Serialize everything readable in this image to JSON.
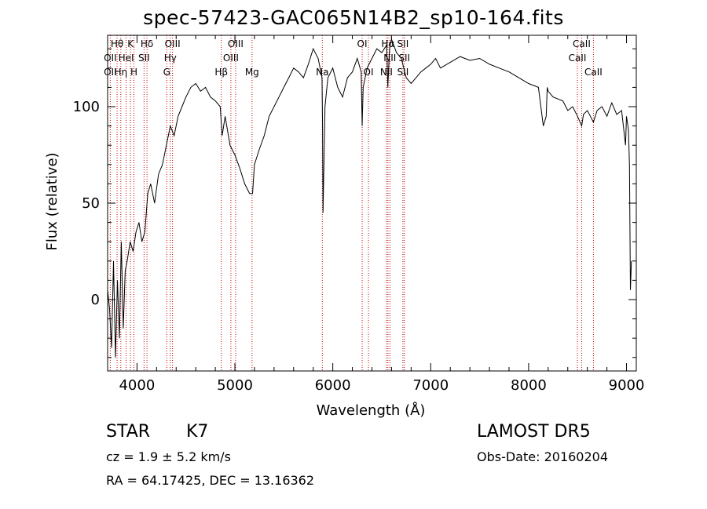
{
  "title": "spec-57423-GAC065N14B2_sp10-164.fits",
  "chart_data": {
    "type": "line",
    "title": "spec-57423-GAC065N14B2_sp10-164.fits",
    "xlabel": "Wavelength (Å)",
    "ylabel": "Flux (relative)",
    "xlim": [
      3700,
      9100
    ],
    "ylim": [
      -37,
      137
    ],
    "xticks": [
      4000,
      5000,
      6000,
      7000,
      8000,
      9000
    ],
    "yticks": [
      0,
      50,
      100
    ],
    "series": [
      {
        "x": [
          3700,
          3720,
          3740,
          3760,
          3780,
          3800,
          3820,
          3840,
          3860,
          3880,
          3900,
          3930,
          3960,
          3990,
          4020,
          4050,
          4080,
          4110,
          4140,
          4180,
          4220,
          4260,
          4300,
          4340,
          4380,
          4420,
          4460,
          4500,
          4550,
          4600,
          4650,
          4700,
          4750,
          4800,
          4850,
          4870,
          4900,
          4950,
          5000,
          5050,
          5100,
          5150,
          5180,
          5200,
          5250,
          5300,
          5350,
          5400,
          5450,
          5500,
          5550,
          5600,
          5650,
          5700,
          5750,
          5800,
          5850,
          5890,
          5895,
          5900,
          5920,
          5950,
          6000,
          6050,
          6100,
          6150,
          6200,
          6250,
          6290,
          6300,
          6310,
          6350,
          6400,
          6450,
          6500,
          6550,
          6562,
          6580,
          6600,
          6650,
          6700,
          6750,
          6800,
          6850,
          6900,
          6950,
          7000,
          7050,
          7100,
          7200,
          7300,
          7400,
          7500,
          7600,
          7700,
          7800,
          7900,
          8000,
          8100,
          8150,
          8180,
          8190,
          8200,
          8250,
          8300,
          8350,
          8400,
          8450,
          8500,
          8542,
          8560,
          8600,
          8662,
          8700,
          8750,
          8800,
          8850,
          8900,
          8950,
          8990,
          9000,
          9020,
          9030,
          9040,
          9050
        ],
        "values": [
          5,
          -5,
          -25,
          20,
          -30,
          10,
          -20,
          30,
          -15,
          15,
          20,
          30,
          25,
          35,
          40,
          30,
          35,
          55,
          60,
          50,
          65,
          70,
          80,
          90,
          85,
          95,
          100,
          105,
          110,
          112,
          108,
          110,
          105,
          103,
          100,
          85,
          95,
          80,
          75,
          68,
          60,
          55,
          55,
          70,
          78,
          85,
          95,
          100,
          105,
          110,
          115,
          120,
          118,
          115,
          122,
          130,
          125,
          115,
          90,
          45,
          100,
          115,
          120,
          110,
          105,
          115,
          118,
          125,
          118,
          90,
          110,
          120,
          125,
          130,
          128,
          132,
          110,
          130,
          135,
          128,
          125,
          115,
          112,
          115,
          118,
          120,
          122,
          125,
          120,
          123,
          126,
          124,
          125,
          122,
          120,
          118,
          115,
          112,
          110,
          90,
          95,
          110,
          108,
          105,
          104,
          103,
          98,
          100,
          95,
          90,
          96,
          98,
          92,
          98,
          100,
          95,
          102,
          96,
          98,
          80,
          95,
          88,
          70,
          5,
          20
        ]
      }
    ],
    "line_labels": [
      {
        "text": "Hθ",
        "x": 3797,
        "row": 1
      },
      {
        "text": "OII",
        "x": 3727,
        "row": 2
      },
      {
        "text": "OII",
        "x": 3727,
        "row": 3
      },
      {
        "text": "K",
        "x": 3934,
        "row": 1
      },
      {
        "text": "HeI",
        "x": 3889,
        "row": 2
      },
      {
        "text": "Hη",
        "x": 3835,
        "row": 3
      },
      {
        "text": "H",
        "x": 3969,
        "row": 3
      },
      {
        "text": "Hδ",
        "x": 4102,
        "row": 1
      },
      {
        "text": "SII",
        "x": 4072,
        "row": 2
      },
      {
        "text": "OIII",
        "x": 4363,
        "row": 1
      },
      {
        "text": "Hγ",
        "x": 4340,
        "row": 2
      },
      {
        "text": "G",
        "x": 4304,
        "row": 3
      },
      {
        "text": "OIII",
        "x": 5007,
        "row": 1
      },
      {
        "text": "OIII",
        "x": 4959,
        "row": 2
      },
      {
        "text": "Hβ",
        "x": 4861,
        "row": 3
      },
      {
        "text": "Mg",
        "x": 5175,
        "row": 3
      },
      {
        "text": "Na",
        "x": 5893,
        "row": 3
      },
      {
        "text": "OI",
        "x": 6300,
        "row": 1
      },
      {
        "text": "OI",
        "x": 6364,
        "row": 3
      },
      {
        "text": "Hα",
        "x": 6563,
        "row": 1
      },
      {
        "text": "SII",
        "x": 6716,
        "row": 1
      },
      {
        "text": "NII",
        "x": 6583,
        "row": 2
      },
      {
        "text": "SII",
        "x": 6731,
        "row": 2
      },
      {
        "text": "NII",
        "x": 6548,
        "row": 3
      },
      {
        "text": "SII",
        "x": 6716,
        "row": 3
      },
      {
        "text": "CaII",
        "x": 8542,
        "row": 1
      },
      {
        "text": "CaII",
        "x": 8498,
        "row": 2
      },
      {
        "text": "CaII",
        "x": 8662,
        "row": 3
      }
    ],
    "marker_lines": [
      3727,
      3797,
      3835,
      3889,
      3934,
      3969,
      4072,
      4102,
      4304,
      4340,
      4363,
      4861,
      4959,
      5007,
      5175,
      5893,
      6300,
      6364,
      6548,
      6563,
      6583,
      6716,
      6731,
      8498,
      8542,
      8662
    ],
    "grid": false,
    "legend": "none"
  },
  "info": {
    "obj_class": "STAR",
    "obj_subclass": "K7",
    "survey": "LAMOST DR5",
    "cz": "cz = 1.9 ± 5.2 km/s",
    "obs_date": "Obs-Date: 20160204",
    "radec": "RA =  64.17425, DEC =  13.16362"
  },
  "colors": {
    "spectrum": "#000000",
    "marker": "#c00000",
    "axes": "#000000"
  }
}
